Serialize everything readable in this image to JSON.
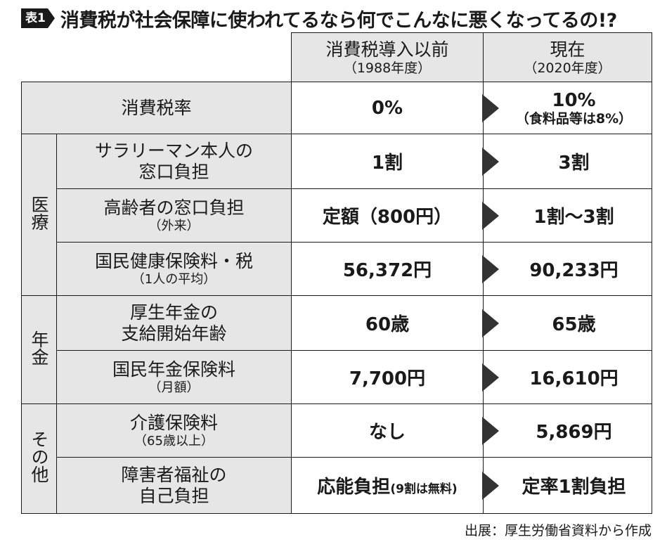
{
  "title": {
    "badge": "表1",
    "text": "消費税が社会保障に使われてるなら何でこんなに悪くなってるの!?"
  },
  "header": {
    "before_main": "消費税導入以前",
    "before_sub": "（1988年度）",
    "current_main": "現在",
    "current_sub": "（2020年度）"
  },
  "groups": {
    "iryo": "医療",
    "nenkin": "年金",
    "sonota": "その他"
  },
  "rows": {
    "tax_rate": {
      "label": "消費税率",
      "before": "0%",
      "current": "10%",
      "current_note": "（食料品等は8%）"
    },
    "salaryman": {
      "label_line1": "サラリーマン本人の",
      "label_line2": "窓口負担",
      "before": "1割",
      "current": "3割"
    },
    "elderly": {
      "label_line1": "高齢者の窓口負担",
      "label_sub": "（外来）",
      "before": "定額（800円）",
      "current": "1割〜3割"
    },
    "nhi": {
      "label_line1": "国民健康保険料・税",
      "label_sub": "（1人の平均）",
      "before": "56,372円",
      "current": "90,233円"
    },
    "pension_age": {
      "label_line1": "厚生年金の",
      "label_line2": "支給開始年齢",
      "before": "60歳",
      "current": "65歳"
    },
    "national_pension": {
      "label_line1": "国民年金保険料",
      "label_sub": "（月額）",
      "before": "7,700円",
      "current": "16,610円"
    },
    "care": {
      "label_line1": "介護保険料",
      "label_sub": "（65歳以上）",
      "before": "なし",
      "current": "5,869円"
    },
    "disability": {
      "label_line1": "障害者福祉の",
      "label_line2": "自己負担",
      "before_main": "応能負担",
      "before_note": "(9割は無料)",
      "current": "定率1割負担"
    }
  },
  "source": "出展：厚生労働省資料から作成",
  "colors": {
    "header_bg": "#e6e6e6",
    "arrow": "#333333",
    "border": "#1a1a1a"
  }
}
